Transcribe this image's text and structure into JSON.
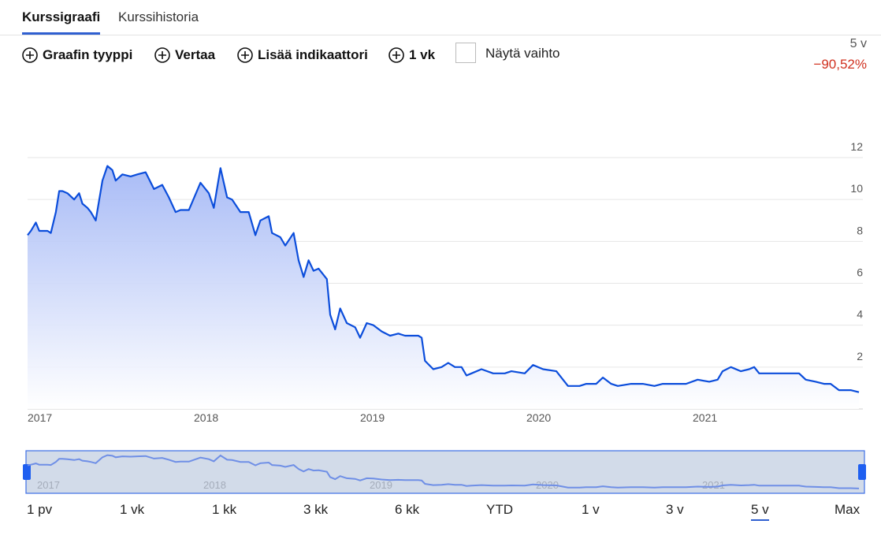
{
  "tabs": [
    "Kurssigraafi",
    "Kurssihistoria"
  ],
  "toolbar": [
    "Graafin tyyppi",
    "Vertaa",
    "Lisää indikaattori",
    "1 vk"
  ],
  "checkbox_label": "Näytä vaihto",
  "period": "5 v",
  "change": "−90,52%",
  "ranges": [
    "1 pv",
    "1 vk",
    "1 kk",
    "3 kk",
    "6 kk",
    "YTD",
    "1 v",
    "3 v",
    "5 v",
    "Max"
  ],
  "chart_data": {
    "type": "area",
    "color": "#0b4ddb",
    "x": [
      2017.0,
      2017.02,
      2017.05,
      2017.07,
      2017.12,
      2017.14,
      2017.17,
      2017.19,
      2017.21,
      2017.24,
      2017.28,
      2017.31,
      2017.33,
      2017.36,
      2017.38,
      2017.41,
      2017.45,
      2017.48,
      2017.51,
      2017.53,
      2017.57,
      2017.62,
      2017.66,
      2017.71,
      2017.76,
      2017.81,
      2017.85,
      2017.89,
      2017.92,
      2017.97,
      2018.04,
      2018.09,
      2018.12,
      2018.16,
      2018.2,
      2018.23,
      2018.28,
      2018.33,
      2018.37,
      2018.4,
      2018.45,
      2018.47,
      2018.52,
      2018.55,
      2018.6,
      2018.63,
      2018.66,
      2018.69,
      2018.72,
      2018.75,
      2018.8,
      2018.82,
      2018.85,
      2018.88,
      2018.92,
      2018.97,
      2019.0,
      2019.04,
      2019.08,
      2019.13,
      2019.18,
      2019.23,
      2019.27,
      2019.35,
      2019.37,
      2019.39,
      2019.44,
      2019.49,
      2019.53,
      2019.57,
      2019.61,
      2019.64,
      2019.67,
      2019.73,
      2019.8,
      2019.87,
      2019.91,
      2019.99,
      2020.04,
      2020.1,
      2020.18,
      2020.21,
      2020.25,
      2020.32,
      2020.36,
      2020.42,
      2020.46,
      2020.51,
      2020.55,
      2020.63,
      2020.7,
      2020.77,
      2020.82,
      2020.89,
      2020.96,
      2021.03,
      2021.1,
      2021.15,
      2021.18,
      2021.23,
      2021.29,
      2021.34,
      2021.37,
      2021.4,
      2021.45,
      2021.53,
      2021.6,
      2021.64,
      2021.68,
      2021.74,
      2021.79,
      2021.83,
      2021.88,
      2021.95,
      2022.0
    ],
    "values": [
      8.3,
      8.5,
      8.9,
      8.5,
      8.5,
      8.4,
      9.4,
      10.4,
      10.4,
      10.3,
      10.0,
      10.3,
      9.8,
      9.6,
      9.4,
      9.0,
      10.9,
      11.6,
      11.4,
      10.9,
      11.2,
      11.1,
      11.2,
      11.3,
      10.5,
      10.7,
      10.1,
      9.4,
      9.5,
      9.5,
      10.8,
      10.3,
      9.6,
      11.5,
      10.1,
      10.0,
      9.4,
      9.4,
      8.3,
      9.0,
      9.2,
      8.4,
      8.2,
      7.8,
      8.4,
      7.1,
      6.3,
      7.1,
      6.6,
      6.7,
      6.2,
      4.5,
      3.8,
      4.8,
      4.1,
      3.9,
      3.4,
      4.1,
      4.0,
      3.7,
      3.5,
      3.6,
      3.5,
      3.5,
      3.4,
      2.3,
      1.9,
      2.0,
      2.2,
      2.0,
      2.0,
      1.6,
      1.7,
      1.9,
      1.7,
      1.7,
      1.8,
      1.7,
      2.1,
      1.9,
      1.8,
      1.5,
      1.1,
      1.1,
      1.2,
      1.2,
      1.5,
      1.2,
      1.1,
      1.2,
      1.2,
      1.1,
      1.2,
      1.2,
      1.2,
      1.4,
      1.3,
      1.4,
      1.8,
      2.0,
      1.8,
      1.9,
      2.0,
      1.7,
      1.7,
      1.7,
      1.7,
      1.7,
      1.4,
      1.3,
      1.2,
      1.2,
      0.9,
      0.9,
      0.8
    ],
    "xlim": [
      2017,
      2022
    ],
    "xticks": [
      2017,
      2018,
      2019,
      2020,
      2021
    ],
    "ylim": [
      0,
      12
    ],
    "yticks": [
      2,
      4,
      6,
      8,
      10,
      12
    ],
    "grid": true
  }
}
